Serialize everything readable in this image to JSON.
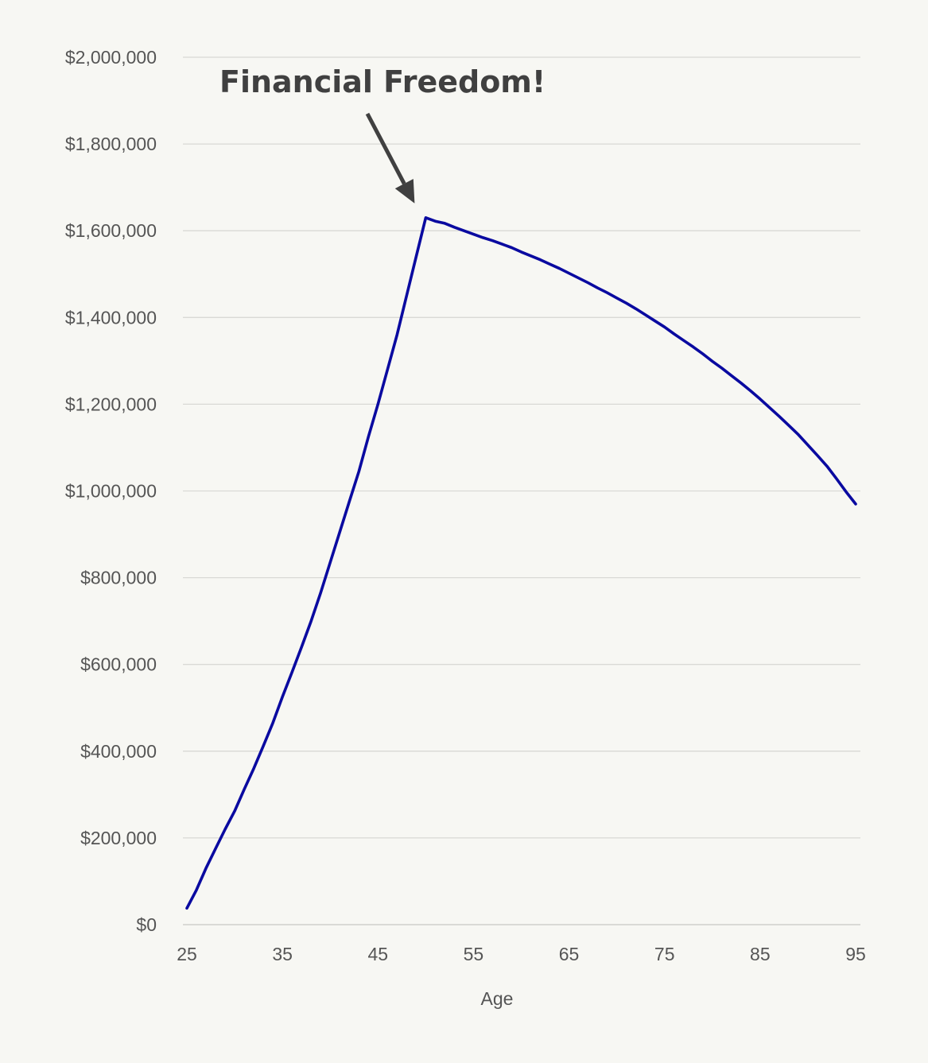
{
  "chart_data": {
    "type": "line",
    "title": "",
    "xlabel": "Age",
    "ylabel": "",
    "xlim": [
      25,
      95
    ],
    "ylim": [
      0,
      2000000
    ],
    "grid": "horizontal",
    "x_ticks": [
      25,
      35,
      45,
      55,
      65,
      75,
      85,
      95
    ],
    "x_tick_labels": [
      "25",
      "35",
      "45",
      "55",
      "65",
      "75",
      "85",
      "95"
    ],
    "y_ticks": [
      0,
      200000,
      400000,
      600000,
      800000,
      1000000,
      1200000,
      1400000,
      1600000,
      1800000,
      2000000
    ],
    "y_tick_labels": [
      "$0",
      "$200,000",
      "$400,000",
      "$600,000",
      "$800,000",
      "$1,000,000",
      "$1,200,000",
      "$1,400,000",
      "$1,600,000",
      "$1,800,000",
      "$2,000,000"
    ],
    "series": [
      {
        "color": "#0a0aa0",
        "x": [
          25,
          26,
          27,
          28,
          29,
          30,
          31,
          32,
          33,
          34,
          35,
          36,
          37,
          38,
          39,
          40,
          41,
          42,
          43,
          44,
          45,
          46,
          47,
          48,
          49,
          50,
          51,
          52,
          53,
          54,
          55,
          56,
          57,
          58,
          59,
          60,
          61,
          62,
          63,
          64,
          65,
          66,
          67,
          68,
          69,
          70,
          71,
          72,
          73,
          74,
          75,
          76,
          77,
          78,
          79,
          80,
          81,
          82,
          83,
          84,
          85,
          86,
          87,
          88,
          89,
          90,
          91,
          92,
          93,
          94,
          95
        ],
        "values": [
          38000,
          80000,
          130000,
          175000,
          220000,
          262000,
          312000,
          360000,
          412000,
          465000,
          525000,
          582000,
          640000,
          700000,
          765000,
          835000,
          905000,
          975000,
          1045000,
          1125000,
          1200000,
          1280000,
          1360000,
          1450000,
          1540000,
          1630000,
          1622000,
          1617000,
          1608000,
          1600000,
          1592000,
          1584000,
          1577000,
          1569000,
          1561000,
          1551000,
          1542000,
          1533000,
          1523000,
          1513000,
          1502000,
          1491000,
          1480000,
          1468000,
          1457000,
          1445000,
          1433000,
          1420000,
          1406000,
          1392000,
          1378000,
          1362000,
          1347000,
          1332000,
          1316000,
          1299000,
          1283000,
          1266000,
          1249000,
          1231000,
          1212000,
          1192000,
          1172000,
          1151000,
          1130000,
          1106000,
          1082000,
          1057000,
          1028000,
          998000,
          970000
        ]
      }
    ],
    "annotations": [
      {
        "text": "Financial Freedom!",
        "point_x": 50,
        "point_y": 1630000,
        "color": "#404040"
      }
    ]
  }
}
